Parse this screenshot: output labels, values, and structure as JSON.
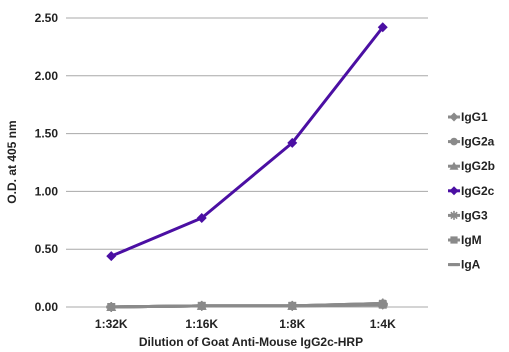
{
  "chart_data": {
    "type": "line",
    "categories": [
      "1:32K",
      "1:16K",
      "1:8K",
      "1:4K"
    ],
    "ylim": [
      0,
      2.5
    ],
    "yticks": [
      "0.00",
      "0.50",
      "1.00",
      "1.50",
      "2.00",
      "2.50"
    ],
    "xlabel": "Dilution of Goat Anti-Mouse IgG2c-HRP",
    "ylabel": "O.D. at 405 nm",
    "grid": "horizontal",
    "legend_position": "right",
    "series": [
      {
        "name": "IgG1",
        "values": [
          0.0,
          0.01,
          0.01,
          0.02
        ],
        "color": "#8a8a8a",
        "marker": "diamond"
      },
      {
        "name": "IgG2a",
        "values": [
          0.0,
          0.01,
          0.01,
          0.03
        ],
        "color": "#8a8a8a",
        "marker": "circle"
      },
      {
        "name": "IgG2b",
        "values": [
          0.0,
          0.01,
          0.01,
          0.03
        ],
        "color": "#8a8a8a",
        "marker": "triangle"
      },
      {
        "name": "IgG2c",
        "values": [
          0.44,
          0.77,
          1.42,
          2.42
        ],
        "color": "#4b0fa3",
        "marker": "diamond"
      },
      {
        "name": "IgG3",
        "values": [
          0.0,
          0.01,
          0.01,
          0.03
        ],
        "color": "#8a8a8a",
        "marker": "star"
      },
      {
        "name": "IgM",
        "values": [
          0.0,
          0.01,
          0.01,
          0.02
        ],
        "color": "#8a8a8a",
        "marker": "square"
      },
      {
        "name": "IgA",
        "values": [
          0.0,
          0.01,
          0.01,
          0.02
        ],
        "color": "#8a8a8a",
        "marker": "dash"
      }
    ]
  }
}
